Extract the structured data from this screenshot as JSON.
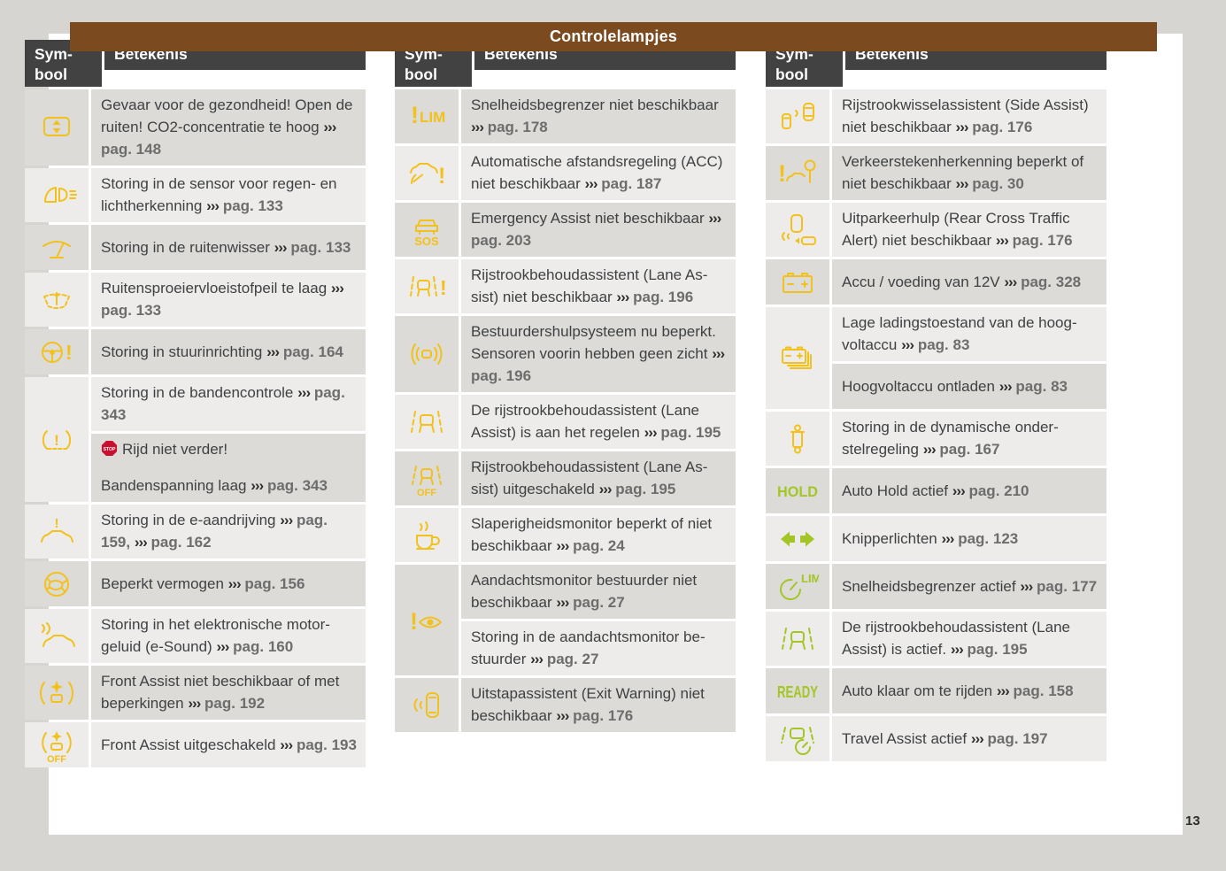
{
  "title": "Controlelampjes",
  "page_number": "13",
  "chevron": "›››",
  "stop_label": "STOP",
  "colors": {
    "banner_brown": "#7b4a1e",
    "header_gray": "#434242",
    "yellow": "#f2c11c",
    "green": "#a3c626",
    "stop_red": "#c8102e"
  },
  "column_headers": {
    "symbool": "Sym-bool",
    "betekenis": "Betekenis"
  },
  "tables": [
    {
      "rows": [
        {
          "icon": "window-co2",
          "icon_color": "yellow",
          "cells": [
            {
              "segments": [
                {
                  "text": "Gevaar voor de gezondheid! Open de ruiten! CO2-concentratie te hoog"
                },
                {
                  "ref": "pag. 148"
                }
              ]
            }
          ]
        },
        {
          "icon": "rain-light-sensor",
          "icon_color": "yellow",
          "cells": [
            {
              "segments": [
                {
                  "text": "Storing in de sensor voor regen- en lichtherkenning"
                },
                {
                  "ref": "pag. 133"
                }
              ]
            }
          ]
        },
        {
          "icon": "wiper",
          "icon_color": "yellow",
          "cells": [
            {
              "segments": [
                {
                  "text": "Storing in de ruitenwisser"
                },
                {
                  "ref": "pag. 133"
                }
              ]
            }
          ]
        },
        {
          "icon": "washer-fluid",
          "icon_color": "yellow",
          "cells": [
            {
              "segments": [
                {
                  "text": "Ruitensproeiervloeistofpeil te laag"
                },
                {
                  "ref": "pag. 133"
                }
              ]
            }
          ]
        },
        {
          "icon": "steering-warning",
          "icon_color": "yellow",
          "cells": [
            {
              "segments": [
                {
                  "text": "Storing in stuurinrichting"
                },
                {
                  "ref": "pag. 164"
                }
              ]
            }
          ]
        },
        {
          "icon": "tpms",
          "icon_color": "yellow",
          "cells": [
            {
              "segments": [
                {
                  "text": "Storing in de bandencontrole"
                },
                {
                  "ref": "pag. 343"
                }
              ]
            },
            {
              "segments": [
                {
                  "stop": true
                },
                {
                  "text": "Rijd niet verder!"
                },
                {
                  "break": true
                },
                {
                  "text": "Bandenspanning laag"
                },
                {
                  "ref": "pag. 343"
                }
              ]
            }
          ]
        },
        {
          "icon": "ev-drive-warning",
          "icon_color": "yellow",
          "cells": [
            {
              "segments": [
                {
                  "text": "Storing in de e-aandrijving"
                },
                {
                  "ref": "pag. 159,"
                },
                {
                  "ref": "pag. 162"
                }
              ]
            }
          ]
        },
        {
          "icon": "turtle",
          "icon_color": "yellow",
          "cells": [
            {
              "segments": [
                {
                  "text": "Beperkt vermogen"
                },
                {
                  "ref": "pag. 156"
                }
              ]
            }
          ]
        },
        {
          "icon": "e-sound",
          "icon_color": "yellow",
          "cells": [
            {
              "segments": [
                {
                  "text": "Storing in het elektronische motor­geluid (e-Sound)"
                },
                {
                  "ref": "pag. 160"
                }
              ]
            }
          ]
        },
        {
          "icon": "front-assist",
          "icon_color": "yellow",
          "cells": [
            {
              "segments": [
                {
                  "text": "Front Assist niet beschikbaar of met beperkingen"
                },
                {
                  "ref": "pag. 192"
                }
              ]
            }
          ]
        },
        {
          "icon": "front-assist-off",
          "icon_color": "yellow",
          "icon_label": "OFF",
          "cells": [
            {
              "segments": [
                {
                  "text": "Front Assist uitgeschakeld"
                },
                {
                  "ref": "pag. 193"
                }
              ]
            }
          ]
        }
      ]
    },
    {
      "rows": [
        {
          "icon": "speed-limiter-warning",
          "icon_color": "yellow",
          "icon_label": "LIM",
          "cells": [
            {
              "segments": [
                {
                  "text": "Snelheidsbegrenzer niet beschik­baar"
                },
                {
                  "ref": "pag. 178"
                }
              ]
            }
          ]
        },
        {
          "icon": "acc-warning",
          "icon_color": "yellow",
          "cells": [
            {
              "segments": [
                {
                  "text": "Automatische afstandsregeling (ACC) niet beschikbaar"
                },
                {
                  "ref": "pag. 187"
                }
              ]
            }
          ]
        },
        {
          "icon": "emergency-assist",
          "icon_color": "yellow",
          "icon_label": "SOS",
          "cells": [
            {
              "segments": [
                {
                  "text": "Emergency Assist niet beschikbaar"
                },
                {
                  "ref": "pag. 203"
                }
              ]
            }
          ]
        },
        {
          "icon": "lane-assist-warning",
          "icon_color": "yellow",
          "cells": [
            {
              "segments": [
                {
                  "text": "Rijstrookbehoudassistent (Lane As­sist) niet beschikbaar"
                },
                {
                  "ref": "pag. 196"
                }
              ]
            }
          ]
        },
        {
          "icon": "sensor-blocked",
          "icon_color": "yellow",
          "cells": [
            {
              "segments": [
                {
                  "text": "Bestuurdershulpsysteem nu be­perkt. Sensoren voorin hebben geen zicht"
                },
                {
                  "ref": "pag. 196"
                }
              ]
            }
          ]
        },
        {
          "icon": "lane-assist-regulating",
          "icon_color": "yellow",
          "cells": [
            {
              "segments": [
                {
                  "text": "De rijstrookbehoudassistent (Lane Assist) is aan het regelen"
                },
                {
                  "ref": "pag. 195"
                }
              ]
            }
          ]
        },
        {
          "icon": "lane-assist-off",
          "icon_color": "yellow",
          "icon_label": "OFF",
          "cells": [
            {
              "segments": [
                {
                  "text": "Rijstrookbehoudassistent (Lane As­sist) uitgeschakeld"
                },
                {
                  "ref": "pag. 195"
                }
              ]
            }
          ]
        },
        {
          "icon": "drowsiness-monitor",
          "icon_color": "yellow",
          "cells": [
            {
              "segments": [
                {
                  "text": "Slaperigheidsmonitor beperkt of niet beschikbaar"
                },
                {
                  "ref": "pag. 24"
                }
              ]
            }
          ]
        },
        {
          "icon": "attention-monitor",
          "icon_color": "yellow",
          "cells": [
            {
              "segments": [
                {
                  "text": "Aandachtsmonitor bestuurder niet beschikbaar"
                },
                {
                  "ref": "pag. 27"
                }
              ]
            },
            {
              "segments": [
                {
                  "text": "Storing in de aandachtsmonitor be­stuurder"
                },
                {
                  "ref": "pag. 27"
                }
              ]
            }
          ]
        },
        {
          "icon": "exit-warning",
          "icon_color": "yellow",
          "cells": [
            {
              "segments": [
                {
                  "text": "Uitstapassistent (Exit Warning) niet beschikbaar"
                },
                {
                  "ref": "pag. 176"
                }
              ]
            }
          ]
        }
      ]
    },
    {
      "rows": [
        {
          "icon": "side-assist",
          "icon_color": "yellow",
          "cells": [
            {
              "segments": [
                {
                  "text": "Rijstrookwisselassistent (Side Assist) niet beschikbaar"
                },
                {
                  "ref": "pag. 176"
                }
              ]
            }
          ]
        },
        {
          "icon": "traffic-sign-recognition",
          "icon_color": "yellow",
          "cells": [
            {
              "segments": [
                {
                  "text": "Verkeerstekenherkenning beperkt of niet beschikbaar"
                },
                {
                  "ref": "pag. 30"
                }
              ]
            }
          ]
        },
        {
          "icon": "rear-cross-traffic",
          "icon_color": "yellow",
          "cells": [
            {
              "segments": [
                {
                  "text": "Uitparkeerhulp (Rear Cross Traffic Alert) niet beschikbaar"
                },
                {
                  "ref": "pag. 176"
                }
              ]
            }
          ]
        },
        {
          "icon": "battery-12v",
          "icon_color": "yellow",
          "cells": [
            {
              "segments": [
                {
                  "text": "Accu / voeding van 12V"
                },
                {
                  "ref": "pag. 328"
                }
              ]
            }
          ]
        },
        {
          "icon": "hv-battery",
          "icon_color": "yellow",
          "cells": [
            {
              "segments": [
                {
                  "text": "Lage ladingstoestand van de hoog­voltaccu"
                },
                {
                  "ref": "pag. 83"
                }
              ]
            },
            {
              "segments": [
                {
                  "text": "Hoogvoltaccu ontladen"
                },
                {
                  "ref": "pag. 83"
                }
              ]
            }
          ]
        },
        {
          "icon": "damper",
          "icon_color": "yellow",
          "cells": [
            {
              "segments": [
                {
                  "text": "Storing in de dynamische onder­stelregeling"
                },
                {
                  "ref": "pag. 167"
                }
              ]
            }
          ]
        },
        {
          "icon": "auto-hold",
          "icon_color": "green",
          "icon_label": "HOLD",
          "cells": [
            {
              "segments": [
                {
                  "text": "Auto Hold actief"
                },
                {
                  "ref": "pag. 210"
                }
              ]
            }
          ]
        },
        {
          "icon": "turn-signals",
          "icon_color": "green",
          "cells": [
            {
              "segments": [
                {
                  "text": "Knipperlichten"
                },
                {
                  "ref": "pag. 123"
                }
              ]
            }
          ]
        },
        {
          "icon": "speed-limiter-active",
          "icon_color": "green",
          "icon_label": "LIM",
          "cells": [
            {
              "segments": [
                {
                  "text": "Snelheidsbegrenzer actief"
                },
                {
                  "ref": "pag. 177"
                }
              ]
            }
          ]
        },
        {
          "icon": "lane-assist-active",
          "icon_color": "green",
          "cells": [
            {
              "segments": [
                {
                  "text": "De rijstrookbehoudassistent (Lane Assist) is actief."
                },
                {
                  "ref": "pag. 195"
                }
              ]
            }
          ]
        },
        {
          "icon": "ready",
          "icon_color": "green",
          "icon_label": "READY",
          "cells": [
            {
              "segments": [
                {
                  "text": "Auto klaar om te rijden"
                },
                {
                  "ref": "pag. 158"
                }
              ]
            }
          ]
        },
        {
          "icon": "travel-assist-active",
          "icon_color": "green",
          "cells": [
            {
              "segments": [
                {
                  "text": "Travel Assist actief"
                },
                {
                  "ref": "pag. 197"
                }
              ]
            }
          ]
        }
      ]
    }
  ]
}
